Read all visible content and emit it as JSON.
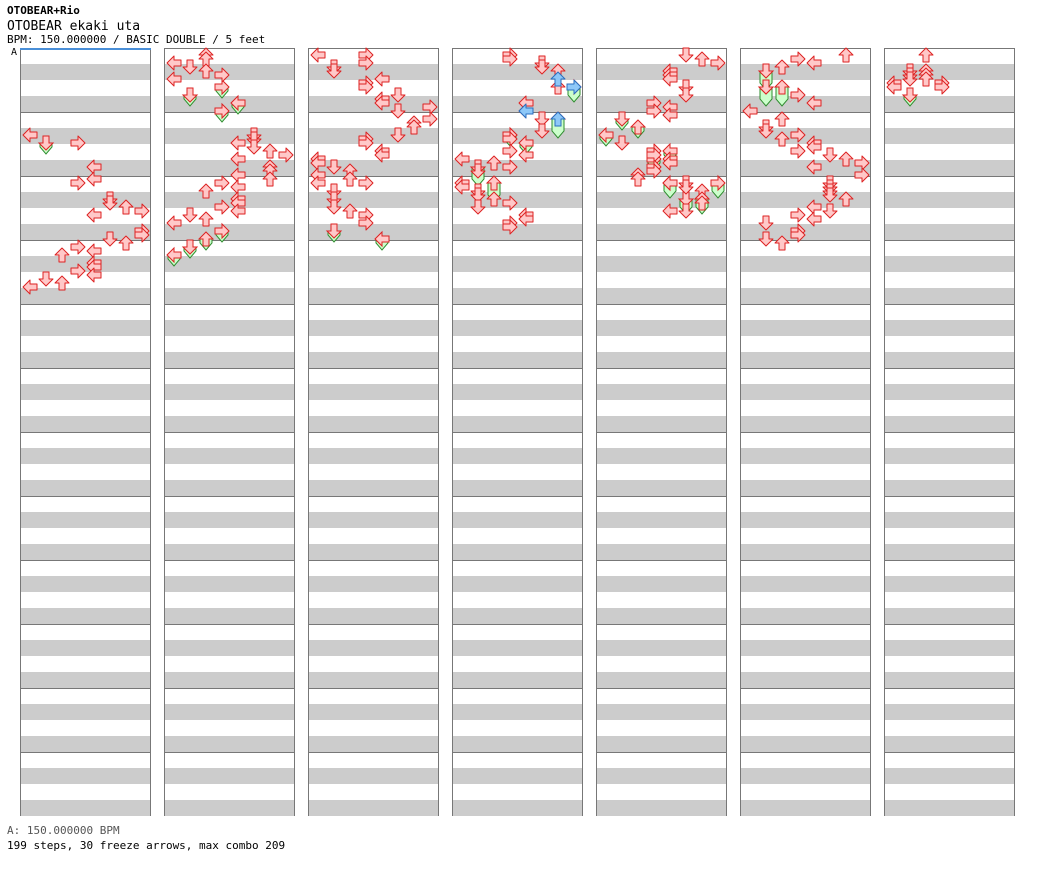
{
  "header": {
    "title": "OTOBEAR+Rio",
    "song": "OTOBEAR ekaki uta",
    "info": "BPM: 150.000000 / BASIC DOUBLE / 5 feet",
    "marker": "A"
  },
  "footer": {
    "bpm_line": "A: 150.000000 BPM",
    "stats_line": "199 steps, 30 freeze arrows, max combo 209"
  },
  "colors": {
    "tap_fill": "#ffc8c8",
    "tap_stroke": "#dd2222",
    "freeze_fill": "#ccffcc",
    "freeze_stroke": "#2e8b2e",
    "shock_fill": "#8ec8f8",
    "shock_stroke": "#2a6fc0",
    "band": "#cccccc",
    "start_line": "#4a8fd8"
  },
  "chart": {
    "lanes": [
      "left-1",
      "down-1",
      "up-1",
      "right-1",
      "left-2",
      "down-2",
      "up-2",
      "right-2"
    ],
    "columns": 7,
    "measures_per_column": 12,
    "beats_per_measure": 4,
    "columns_data": [
      {
        "taps": [
          [
            5,
            0
          ],
          [
            5.5,
            3
          ],
          [
            7,
            4
          ],
          [
            7.75,
            4
          ],
          [
            8,
            3
          ],
          [
            9,
            5
          ],
          [
            9.25,
            5
          ],
          [
            9.5,
            6
          ],
          [
            9.75,
            7
          ],
          [
            10,
            4
          ],
          [
            11,
            7
          ],
          [
            11.25,
            7
          ],
          [
            11.5,
            5
          ],
          [
            11.75,
            6
          ],
          [
            12,
            3
          ],
          [
            12.25,
            4
          ],
          [
            12.5,
            2
          ],
          [
            13,
            4
          ],
          [
            13.25,
            4
          ],
          [
            13.5,
            3
          ],
          [
            13.75,
            4
          ],
          [
            14,
            1
          ],
          [
            14.25,
            2
          ],
          [
            14.5,
            0
          ]
        ],
        "freezes": [
          [
            5.5,
            6,
            1
          ]
        ]
      },
      {
        "taps": [
          [
            0,
            2
          ],
          [
            0.25,
            2
          ],
          [
            0.5,
            0
          ],
          [
            0.75,
            1
          ],
          [
            1,
            2
          ],
          [
            1.25,
            3
          ],
          [
            1.5,
            0
          ],
          [
            5,
            5
          ],
          [
            5.25,
            5
          ],
          [
            5.5,
            4
          ],
          [
            5.75,
            5
          ],
          [
            6,
            6
          ],
          [
            6.25,
            7
          ],
          [
            6.5,
            4
          ],
          [
            7,
            6
          ],
          [
            7.25,
            6
          ],
          [
            7.5,
            4
          ],
          [
            7.75,
            6
          ],
          [
            8,
            3
          ],
          [
            8.25,
            4
          ],
          [
            8.5,
            2
          ],
          [
            9,
            4
          ],
          [
            9.25,
            4
          ],
          [
            9.5,
            3
          ],
          [
            9.75,
            4
          ],
          [
            10,
            1
          ],
          [
            10.25,
            2
          ],
          [
            10.5,
            0
          ]
        ],
        "freezes": [
          [
            2,
            2.5,
            3
          ],
          [
            2.5,
            3,
            1
          ],
          [
            3,
            3.5,
            4
          ],
          [
            3.5,
            4,
            3
          ],
          [
            11,
            11.5,
            3
          ],
          [
            11.5,
            12,
            2
          ],
          [
            12,
            12.5,
            1
          ],
          [
            12.5,
            13,
            0
          ]
        ]
      },
      {
        "taps": [
          [
            0,
            0
          ],
          [
            0,
            3
          ],
          [
            0.5,
            3
          ],
          [
            0.75,
            1
          ],
          [
            1,
            1
          ],
          [
            1.5,
            4
          ],
          [
            1.75,
            3
          ],
          [
            2,
            3
          ],
          [
            2.5,
            5
          ],
          [
            2.75,
            4
          ],
          [
            3,
            4
          ],
          [
            3.25,
            7
          ],
          [
            3.5,
            5
          ],
          [
            4,
            7
          ],
          [
            4.25,
            6
          ],
          [
            4.5,
            6
          ],
          [
            5,
            5
          ],
          [
            5.25,
            3
          ],
          [
            5.5,
            3
          ],
          [
            6,
            4
          ],
          [
            6.25,
            4
          ],
          [
            6.5,
            0
          ],
          [
            6.75,
            0
          ],
          [
            7,
            1
          ],
          [
            7.25,
            2
          ],
          [
            7.5,
            0
          ],
          [
            7.75,
            2
          ],
          [
            8,
            3
          ],
          [
            8,
            0
          ],
          [
            8.5,
            1
          ],
          [
            9,
            1
          ],
          [
            9.5,
            1
          ],
          [
            9.75,
            2
          ],
          [
            10,
            3
          ],
          [
            10.5,
            3
          ]
        ],
        "freezes": [
          [
            11,
            11.5,
            1
          ],
          [
            11.5,
            12,
            4
          ]
        ]
      },
      {
        "taps": [
          [
            0,
            3
          ],
          [
            0.25,
            3
          ],
          [
            0.5,
            5
          ],
          [
            0.75,
            5
          ],
          [
            1,
            6
          ],
          [
            2,
            6
          ],
          [
            3,
            4
          ],
          [
            3.5,
            4
          ],
          [
            4,
            5
          ],
          [
            4.75,
            5
          ],
          [
            5,
            3
          ],
          [
            5.25,
            3
          ],
          [
            6,
            3
          ],
          [
            6.25,
            4
          ],
          [
            6.5,
            0
          ],
          [
            6.75,
            2
          ],
          [
            7,
            3
          ],
          [
            7.25,
            1
          ],
          [
            8,
            0
          ],
          [
            8.25,
            0
          ],
          [
            8.5,
            1
          ],
          [
            8.75,
            1
          ],
          [
            9,
            2
          ],
          [
            9.25,
            3
          ],
          [
            9.5,
            1
          ],
          [
            10,
            4
          ],
          [
            10.25,
            4
          ],
          [
            10.5,
            3
          ],
          [
            10.75,
            3
          ]
        ],
        "shocks": [
          [
            1.5,
            6
          ],
          [
            3.5,
            4
          ],
          [
            2,
            7
          ],
          [
            4,
            6
          ]
        ],
        "freezes": [
          [
            2,
            2.75,
            7
          ],
          [
            4,
            5,
            6
          ],
          [
            5,
            5.5,
            3
          ],
          [
            5.5,
            6,
            4
          ],
          [
            7,
            8,
            1
          ],
          [
            8,
            9,
            2
          ]
        ]
      },
      {
        "taps": [
          [
            0,
            5
          ],
          [
            0.25,
            6
          ],
          [
            0.5,
            7
          ],
          [
            1,
            4
          ],
          [
            1.25,
            4
          ],
          [
            1.5,
            4
          ],
          [
            2,
            5
          ],
          [
            2.5,
            5
          ],
          [
            3,
            3
          ],
          [
            3.25,
            4
          ],
          [
            3.5,
            3
          ],
          [
            3.75,
            4
          ],
          [
            5.5,
            1
          ],
          [
            6,
            3
          ],
          [
            6.25,
            3
          ],
          [
            6.5,
            4
          ],
          [
            6.75,
            4
          ],
          [
            7,
            3
          ],
          [
            7.25,
            3
          ],
          [
            7.5,
            2
          ],
          [
            7.75,
            2
          ],
          [
            8,
            4
          ],
          [
            8,
            5
          ],
          [
            8.25,
            5
          ],
          [
            8.5,
            6
          ],
          [
            9,
            6
          ],
          [
            9.25,
            6
          ],
          [
            9.75,
            4
          ],
          [
            9.75,
            5
          ]
        ],
        "freezes": [
          [
            4,
            4.5,
            1
          ],
          [
            4.5,
            5,
            2
          ],
          [
            5,
            5.5,
            0
          ],
          [
            6,
            6.5,
            4
          ],
          [
            6.5,
            7,
            3
          ],
          [
            8,
            8.75,
            4
          ],
          [
            8,
            8.75,
            7
          ],
          [
            9,
            9.75,
            5
          ],
          [
            9,
            9.75,
            6
          ]
        ]
      },
      {
        "taps": [
          [
            0,
            6
          ],
          [
            0.25,
            3
          ],
          [
            0.5,
            4
          ],
          [
            0.75,
            2
          ],
          [
            2,
            1
          ],
          [
            2.5,
            3
          ],
          [
            3,
            4
          ],
          [
            3.5,
            0
          ],
          [
            4,
            2
          ],
          [
            4.5,
            1
          ],
          [
            4.75,
            1
          ],
          [
            5,
            3
          ],
          [
            5.25,
            2
          ],
          [
            5.5,
            4
          ],
          [
            5.75,
            4
          ],
          [
            6,
            3
          ],
          [
            6.25,
            5
          ],
          [
            6.5,
            6
          ],
          [
            6.75,
            7
          ],
          [
            7,
            4
          ],
          [
            7.5,
            7
          ],
          [
            8,
            5
          ],
          [
            8.25,
            5
          ],
          [
            8.5,
            5
          ],
          [
            8.75,
            5
          ],
          [
            9,
            6
          ],
          [
            9.5,
            4
          ],
          [
            9.75,
            5
          ],
          [
            10,
            3
          ],
          [
            10.25,
            4
          ],
          [
            10.5,
            1
          ],
          [
            11,
            3
          ],
          [
            11.25,
            3
          ],
          [
            11.5,
            1
          ],
          [
            11.75,
            2
          ]
        ],
        "freezes": [
          [
            1,
            2,
            1
          ],
          [
            2,
            3,
            1
          ],
          [
            2,
            3,
            2
          ]
        ]
      },
      {
        "taps": [
          [
            0,
            2
          ],
          [
            1,
            1
          ],
          [
            1,
            2
          ],
          [
            1.25,
            1
          ],
          [
            1.25,
            2
          ],
          [
            1.5,
            1
          ],
          [
            1.5,
            2
          ],
          [
            1.75,
            0
          ],
          [
            1.75,
            3
          ],
          [
            2,
            0
          ],
          [
            2,
            3
          ]
        ],
        "freezes": [
          [
            2.5,
            3,
            1
          ]
        ]
      }
    ]
  }
}
